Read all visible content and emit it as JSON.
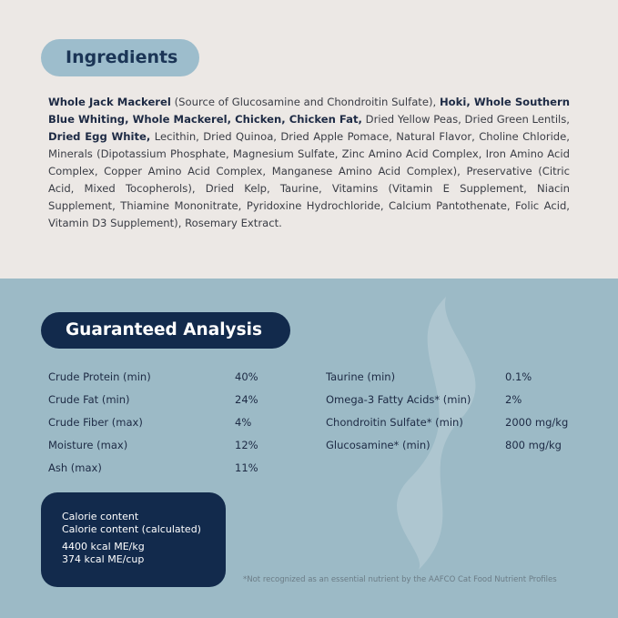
{
  "ingredients": {
    "title": "Ingredients",
    "segments": [
      {
        "t": "Whole Jack Mackerel",
        "b": true
      },
      {
        "t": " (Source of Glucosamine and Chondroitin Sulfate), ",
        "b": false
      },
      {
        "t": "Hoki, Whole Southern Blue Whiting, Whole Mackerel, Chicken, Chicken Fat,",
        "b": true
      },
      {
        "t": " Dried Yellow Peas, Dried Green Lentils, ",
        "b": false
      },
      {
        "t": "Dried Egg White,",
        "b": true
      },
      {
        "t": " Lecithin, Dried Quinoa, Dried Apple Pomace, Natural Flavor, Choline Chloride, Minerals (Dipotassium Phosphate, Magnesium Sulfate, Zinc Amino Acid Complex, Iron Amino Acid Complex, Copper Amino Acid Complex, Manganese Amino Acid Complex),  Preservative (Citric Acid, Mixed Tocopherols), Dried Kelp, Taurine, Vitamins (Vitamin E Supplement, Niacin Supplement, Thiamine Mononitrate, Pyridoxine Hydrochloride, Calcium Pantothenate, Folic Acid, Vitamin D3 Supplement), Rosemary Extract.",
        "b": false
      }
    ]
  },
  "analysis": {
    "title": "Guaranteed Analysis",
    "left": [
      {
        "label": "Crude Protein (min)",
        "value": "40%"
      },
      {
        "label": "Crude Fat (min)",
        "value": "24%"
      },
      {
        "label": "Crude Fiber (max)",
        "value": "4%"
      },
      {
        "label": "Moisture (max)",
        "value": "12%"
      },
      {
        "label": "Ash (max)",
        "value": "11%"
      }
    ],
    "right": [
      {
        "label": "Taurine (min)",
        "value": "0.1%"
      },
      {
        "label": "Omega-3 Fatty Acids* (min)",
        "value": "2%"
      },
      {
        "label": "Chondroitin Sulfate* (min)",
        "value": "2000 mg/kg"
      },
      {
        "label": "Glucosamine* (min)",
        "value": "800 mg/kg"
      }
    ]
  },
  "calorie": {
    "line1": "Calorie content",
    "line2": "Calorie content (calculated)",
    "kg": "4400 kcal ME/kg",
    "cup": "374 kcal ME/cup"
  },
  "footnote": "*Not recognized as an essential nutrient by the AAFCO Cat Food Nutrient Profiles",
  "colors": {
    "top_bg": "#ece8e5",
    "bottom_bg": "#9cbac6",
    "navy": "#122a4c",
    "light_pill": "#9dbdcc"
  }
}
